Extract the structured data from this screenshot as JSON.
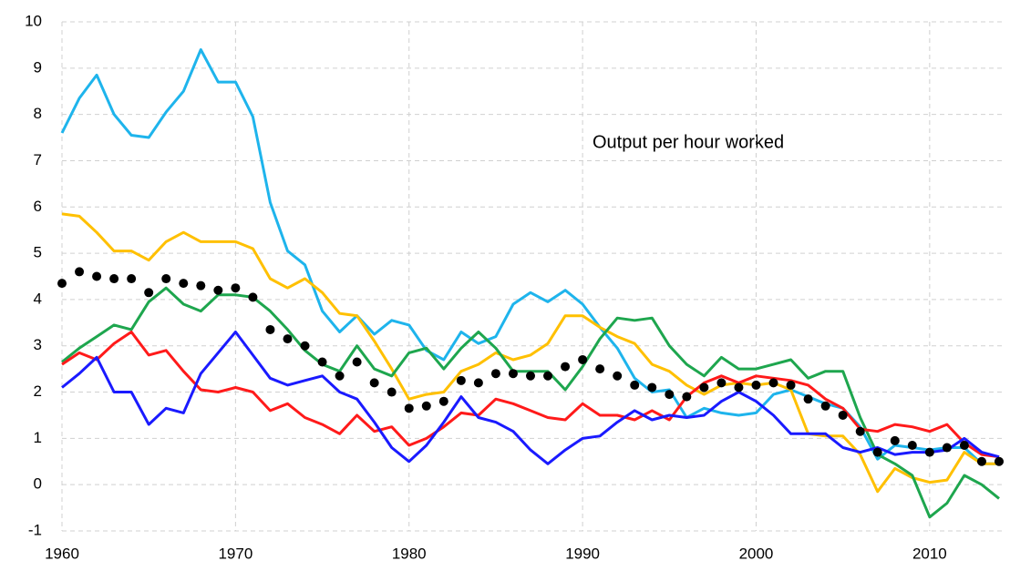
{
  "chart_data": {
    "type": "line",
    "annotation": "Output per hour worked",
    "x": [
      1960,
      1961,
      1962,
      1963,
      1964,
      1965,
      1966,
      1967,
      1968,
      1969,
      1970,
      1971,
      1972,
      1973,
      1974,
      1975,
      1976,
      1977,
      1978,
      1979,
      1980,
      1981,
      1982,
      1983,
      1984,
      1985,
      1986,
      1987,
      1988,
      1989,
      1990,
      1991,
      1992,
      1993,
      1994,
      1995,
      1996,
      1997,
      1998,
      1999,
      2000,
      2001,
      2002,
      2003,
      2004,
      2005,
      2006,
      2007,
      2008,
      2009,
      2010,
      2011,
      2012,
      2013,
      2014
    ],
    "xlim": [
      1960,
      2014
    ],
    "xticks": [
      1960,
      1970,
      1980,
      1990,
      2000,
      2010
    ],
    "ylim": [
      -1,
      10
    ],
    "yticks": [
      -1,
      0,
      1,
      2,
      3,
      4,
      5,
      6,
      7,
      8,
      9,
      10
    ],
    "grid": true,
    "series": [
      {
        "color": "#1eb4ec",
        "style": "line",
        "values": [
          7.6,
          8.35,
          8.85,
          8.0,
          7.55,
          7.5,
          8.05,
          8.5,
          9.4,
          8.7,
          8.7,
          7.95,
          6.1,
          5.05,
          4.75,
          3.75,
          3.3,
          3.65,
          3.25,
          3.55,
          3.45,
          2.9,
          2.7,
          3.3,
          3.05,
          3.2,
          3.9,
          4.15,
          3.95,
          4.2,
          3.9,
          3.4,
          2.95,
          2.3,
          2.0,
          2.05,
          1.45,
          1.65,
          1.55,
          1.5,
          1.55,
          1.95,
          2.05,
          1.9,
          1.75,
          1.65,
          1.25,
          0.55,
          0.85,
          0.8,
          0.75,
          0.8,
          0.8,
          0.45,
          0.45
        ]
      },
      {
        "color": "#ffc000",
        "style": "line",
        "values": [
          5.85,
          5.8,
          5.45,
          5.05,
          5.05,
          4.85,
          5.25,
          5.45,
          5.25,
          5.25,
          5.25,
          5.1,
          4.45,
          4.25,
          4.45,
          4.15,
          3.7,
          3.65,
          3.1,
          2.5,
          1.85,
          1.95,
          2.0,
          2.45,
          2.6,
          2.85,
          2.7,
          2.8,
          3.05,
          3.65,
          3.65,
          3.4,
          3.2,
          3.05,
          2.6,
          2.45,
          2.15,
          1.95,
          2.15,
          2.2,
          2.15,
          2.2,
          2.05,
          1.1,
          1.05,
          1.05,
          0.65,
          -0.15,
          0.35,
          0.15,
          0.05,
          0.1,
          0.7,
          0.45,
          0.45
        ]
      },
      {
        "color": "#1ea64e",
        "style": "line",
        "values": [
          2.65,
          2.95,
          3.2,
          3.45,
          3.35,
          3.95,
          4.25,
          3.9,
          3.75,
          4.1,
          4.1,
          4.05,
          3.75,
          3.35,
          2.9,
          2.6,
          2.45,
          3.0,
          2.5,
          2.35,
          2.85,
          2.95,
          2.5,
          2.95,
          3.3,
          2.95,
          2.45,
          2.45,
          2.45,
          2.05,
          2.55,
          3.15,
          3.6,
          3.55,
          3.6,
          3.0,
          2.6,
          2.35,
          2.75,
          2.5,
          2.5,
          2.6,
          2.7,
          2.3,
          2.45,
          2.45,
          1.45,
          0.65,
          0.45,
          0.2,
          -0.7,
          -0.4,
          0.2,
          0.0,
          -0.3
        ]
      },
      {
        "color": "#ff1a1a",
        "style": "line",
        "values": [
          2.6,
          2.85,
          2.7,
          3.05,
          3.3,
          2.8,
          2.9,
          2.45,
          2.05,
          2.0,
          2.1,
          2.0,
          1.6,
          1.75,
          1.45,
          1.3,
          1.1,
          1.5,
          1.15,
          1.25,
          0.85,
          1.0,
          1.25,
          1.55,
          1.5,
          1.85,
          1.75,
          1.6,
          1.45,
          1.4,
          1.75,
          1.5,
          1.5,
          1.4,
          1.6,
          1.4,
          1.9,
          2.2,
          2.35,
          2.2,
          2.35,
          2.3,
          2.25,
          2.15,
          1.85,
          1.65,
          1.2,
          1.15,
          1.3,
          1.25,
          1.15,
          1.3,
          0.9,
          0.65,
          0.6
        ]
      },
      {
        "color": "#1a1aff",
        "style": "line",
        "values": [
          2.1,
          2.4,
          2.75,
          2.0,
          2.0,
          1.3,
          1.65,
          1.55,
          2.4,
          2.85,
          3.3,
          2.8,
          2.3,
          2.15,
          2.25,
          2.35,
          2.0,
          1.85,
          1.35,
          0.8,
          0.5,
          0.85,
          1.35,
          1.9,
          1.45,
          1.35,
          1.15,
          0.75,
          0.45,
          0.75,
          1.0,
          1.05,
          1.35,
          1.6,
          1.4,
          1.5,
          1.45,
          1.5,
          1.8,
          2.0,
          1.8,
          1.5,
          1.1,
          1.1,
          1.1,
          0.8,
          0.7,
          0.8,
          0.65,
          0.7,
          0.7,
          0.75,
          1.0,
          0.7,
          0.6
        ]
      },
      {
        "color": "#000000",
        "style": "dots",
        "values": [
          4.35,
          4.6,
          4.5,
          4.45,
          4.45,
          4.15,
          4.45,
          4.35,
          4.3,
          4.2,
          4.25,
          4.05,
          3.35,
          3.15,
          3.0,
          2.65,
          2.35,
          2.65,
          2.2,
          2.0,
          1.65,
          1.7,
          1.8,
          2.25,
          2.2,
          2.4,
          2.4,
          2.35,
          2.35,
          2.55,
          2.7,
          2.5,
          2.35,
          2.15,
          2.1,
          1.95,
          1.9,
          2.1,
          2.2,
          2.1,
          2.15,
          2.2,
          2.15,
          1.85,
          1.7,
          1.5,
          1.15,
          0.7,
          0.95,
          0.85,
          0.7,
          0.8,
          0.85,
          0.5,
          0.5
        ]
      }
    ]
  }
}
